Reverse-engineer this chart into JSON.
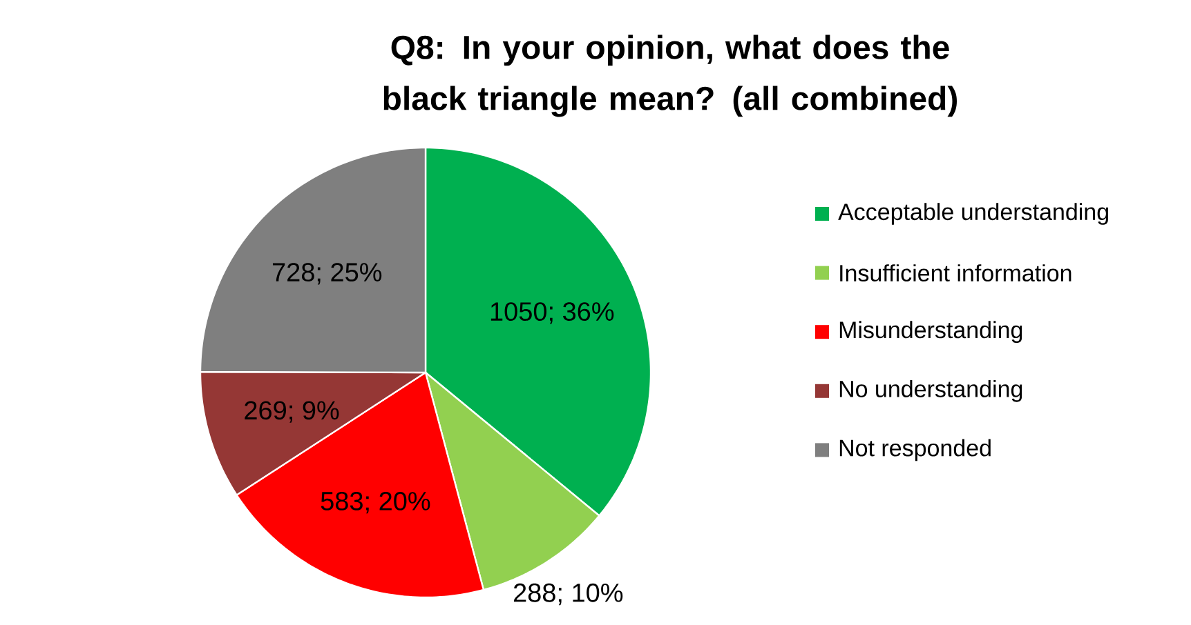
{
  "chart_data": {
    "type": "pie",
    "title": "Q8: In your opinion, what does the black triangle mean? (all combined)",
    "categories": [
      "Acceptable understanding",
      "Insufficient information",
      "Misunderstanding",
      "No understanding",
      "Not responded"
    ],
    "values": [
      1050,
      288,
      583,
      269,
      728
    ],
    "value_labels": [
      "1050; 36%",
      "288; 10%",
      "583; 20%",
      "269; 9%",
      "728; 25%"
    ],
    "colors": [
      "#00b050",
      "#92d050",
      "#ff0000",
      "#953735",
      "#7f7f7f"
    ],
    "legend": "right"
  }
}
